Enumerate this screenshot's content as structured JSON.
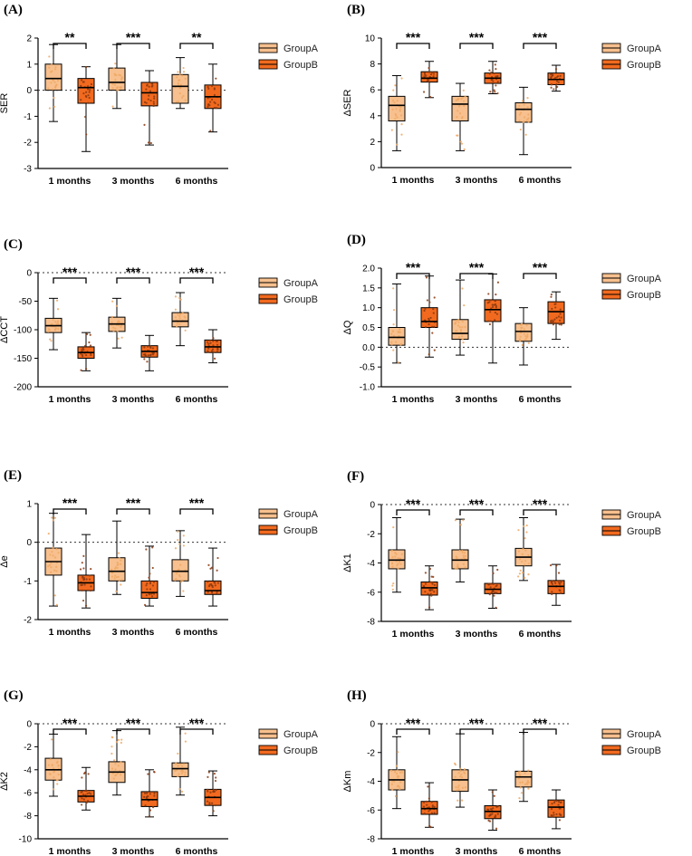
{
  "colors": {
    "groupA": "#F7C08E",
    "groupB": "#F26A1F",
    "pointA": "#F0A864",
    "pointB": "#8A3A12",
    "axis": "#000000"
  },
  "chart_data": [
    {
      "panel": "(A)",
      "type": "boxplot",
      "ylabel": "SER",
      "ylim": [
        -3,
        2
      ],
      "yticks": [
        -3,
        -2,
        -1,
        0,
        1,
        2
      ],
      "zero_line": true,
      "categories": [
        "1 months",
        "3 months",
        "6 months"
      ],
      "legend": [
        "GroupA",
        "GroupB"
      ],
      "significance": [
        "**",
        "***",
        "**"
      ],
      "series": [
        {
          "name": "GroupA",
          "boxes": [
            {
              "min": -1.2,
              "q1": 0.0,
              "median": 0.45,
              "q3": 1.0,
              "max": 1.75
            },
            {
              "min": -0.7,
              "q1": 0.0,
              "median": 0.3,
              "q3": 0.85,
              "max": 1.75
            },
            {
              "min": -0.7,
              "q1": -0.5,
              "median": 0.15,
              "q3": 0.6,
              "max": 1.25
            }
          ]
        },
        {
          "name": "GroupB",
          "boxes": [
            {
              "min": -2.35,
              "q1": -0.5,
              "median": 0.1,
              "q3": 0.45,
              "max": 0.9
            },
            {
              "min": -2.1,
              "q1": -0.6,
              "median": -0.1,
              "q3": 0.3,
              "max": 0.75
            },
            {
              "min": -1.6,
              "q1": -0.7,
              "median": -0.25,
              "q3": 0.2,
              "max": 1.0
            }
          ]
        }
      ]
    },
    {
      "panel": "(B)",
      "type": "boxplot",
      "ylabel": "ΔSER",
      "ylim": [
        0,
        10
      ],
      "yticks": [
        0,
        2,
        4,
        6,
        8,
        10
      ],
      "zero_line": false,
      "categories": [
        "1 months",
        "3 months",
        "6 months"
      ],
      "legend": [
        "GroupA",
        "GroupB"
      ],
      "significance": [
        "***",
        "***",
        "***"
      ],
      "series": [
        {
          "name": "GroupA",
          "boxes": [
            {
              "min": 1.3,
              "q1": 3.6,
              "median": 4.8,
              "q3": 5.5,
              "max": 7.1
            },
            {
              "min": 1.3,
              "q1": 3.6,
              "median": 4.9,
              "q3": 5.5,
              "max": 6.5
            },
            {
              "min": 1.0,
              "q1": 3.5,
              "median": 4.5,
              "q3": 5.0,
              "max": 6.2
            }
          ]
        },
        {
          "name": "GroupB",
          "boxes": [
            {
              "min": 5.4,
              "q1": 6.6,
              "median": 6.9,
              "q3": 7.4,
              "max": 8.2
            },
            {
              "min": 5.7,
              "q1": 6.5,
              "median": 6.9,
              "q3": 7.3,
              "max": 8.2
            },
            {
              "min": 5.9,
              "q1": 6.4,
              "median": 6.8,
              "q3": 7.3,
              "max": 7.9
            }
          ]
        }
      ]
    },
    {
      "panel": "(C)",
      "type": "boxplot",
      "ylabel": "ΔCCT",
      "ylim": [
        -200,
        0
      ],
      "yticks": [
        -200,
        -150,
        -100,
        -50,
        0
      ],
      "zero_line": true,
      "categories": [
        "1 months",
        "3 months",
        "6 months"
      ],
      "legend": [
        "GroupA",
        "GroupB"
      ],
      "significance": [
        "***",
        "***",
        "***"
      ],
      "series": [
        {
          "name": "GroupA",
          "boxes": [
            {
              "min": -135,
              "q1": -105,
              "median": -93,
              "q3": -80,
              "max": -45
            },
            {
              "min": -132,
              "q1": -103,
              "median": -90,
              "q3": -78,
              "max": -45
            },
            {
              "min": -128,
              "q1": -95,
              "median": -85,
              "q3": -70,
              "max": -35
            }
          ]
        },
        {
          "name": "GroupB",
          "boxes": [
            {
              "min": -172,
              "q1": -150,
              "median": -140,
              "q3": -130,
              "max": -105
            },
            {
              "min": -172,
              "q1": -148,
              "median": -138,
              "q3": -128,
              "max": -110
            },
            {
              "min": -158,
              "q1": -140,
              "median": -130,
              "q3": -118,
              "max": -100
            }
          ]
        }
      ]
    },
    {
      "panel": "(D)",
      "type": "boxplot",
      "ylabel": "ΔQ",
      "ylim": [
        -1.0,
        2.0
      ],
      "yticks": [
        -1.0,
        -0.5,
        0.0,
        0.5,
        1.0,
        1.5,
        2.0
      ],
      "zero_line": true,
      "categories": [
        "1 months",
        "3 months",
        "6 months"
      ],
      "legend": [
        "GroupA",
        "GroupB"
      ],
      "significance": [
        "***",
        "***",
        "***"
      ],
      "series": [
        {
          "name": "GroupA",
          "boxes": [
            {
              "min": -0.4,
              "q1": 0.05,
              "median": 0.25,
              "q3": 0.5,
              "max": 1.6
            },
            {
              "min": -0.2,
              "q1": 0.2,
              "median": 0.35,
              "q3": 0.7,
              "max": 1.7
            },
            {
              "min": -0.45,
              "q1": 0.15,
              "median": 0.4,
              "q3": 0.6,
              "max": 1.0
            }
          ]
        },
        {
          "name": "GroupB",
          "boxes": [
            {
              "min": -0.25,
              "q1": 0.5,
              "median": 0.65,
              "q3": 1.0,
              "max": 1.8
            },
            {
              "min": -0.4,
              "q1": 0.65,
              "median": 0.95,
              "q3": 1.2,
              "max": 1.85
            },
            {
              "min": 0.2,
              "q1": 0.6,
              "median": 0.9,
              "q3": 1.15,
              "max": 1.4
            }
          ]
        }
      ]
    },
    {
      "panel": "(E)",
      "type": "boxplot",
      "ylabel": "Δe",
      "ylim": [
        -2,
        1
      ],
      "yticks": [
        -2,
        -1,
        0,
        1
      ],
      "zero_line": true,
      "categories": [
        "1 months",
        "3 months",
        "6 months"
      ],
      "legend": [
        "GroupA",
        "GroupB"
      ],
      "significance": [
        "***",
        "***",
        "***"
      ],
      "series": [
        {
          "name": "GroupA",
          "boxes": [
            {
              "min": -1.65,
              "q1": -0.85,
              "median": -0.5,
              "q3": -0.15,
              "max": 0.75
            },
            {
              "min": -1.35,
              "q1": -1.0,
              "median": -0.75,
              "q3": -0.4,
              "max": 0.55
            },
            {
              "min": -1.4,
              "q1": -1.0,
              "median": -0.75,
              "q3": -0.45,
              "max": 0.3
            }
          ]
        },
        {
          "name": "GroupB",
          "boxes": [
            {
              "min": -1.7,
              "q1": -1.25,
              "median": -1.05,
              "q3": -0.85,
              "max": 0.2
            },
            {
              "min": -1.65,
              "q1": -1.45,
              "median": -1.3,
              "q3": -1.0,
              "max": -0.1
            },
            {
              "min": -1.65,
              "q1": -1.35,
              "median": -1.25,
              "q3": -1.0,
              "max": -0.15
            }
          ]
        }
      ]
    },
    {
      "panel": "(F)",
      "type": "boxplot",
      "ylabel": "ΔK1",
      "ylim": [
        -8,
        0
      ],
      "yticks": [
        -8,
        -6,
        -4,
        -2,
        0
      ],
      "zero_line": true,
      "categories": [
        "1 months",
        "3 months",
        "6 months"
      ],
      "legend": [
        "GroupA",
        "GroupB"
      ],
      "significance": [
        "***",
        "***",
        "***"
      ],
      "series": [
        {
          "name": "GroupA",
          "boxes": [
            {
              "min": -6.0,
              "q1": -4.4,
              "median": -3.8,
              "q3": -3.1,
              "max": -0.9
            },
            {
              "min": -5.3,
              "q1": -4.4,
              "median": -3.8,
              "q3": -3.1,
              "max": -1.0
            },
            {
              "min": -5.2,
              "q1": -4.2,
              "median": -3.6,
              "q3": -3.0,
              "max": -0.9
            }
          ]
        },
        {
          "name": "GroupB",
          "boxes": [
            {
              "min": -7.2,
              "q1": -6.2,
              "median": -5.7,
              "q3": -5.3,
              "max": -4.2
            },
            {
              "min": -7.1,
              "q1": -6.1,
              "median": -5.8,
              "q3": -5.4,
              "max": -4.2
            },
            {
              "min": -6.9,
              "q1": -6.1,
              "median": -5.6,
              "q3": -5.2,
              "max": -4.1
            }
          ]
        }
      ]
    },
    {
      "panel": "(G)",
      "type": "boxplot",
      "ylabel": "ΔK2",
      "ylim": [
        -10,
        0
      ],
      "yticks": [
        -10,
        -8,
        -6,
        -4,
        -2,
        0
      ],
      "zero_line": true,
      "categories": [
        "1 months",
        "3 months",
        "6 months"
      ],
      "legend": [
        "GroupA",
        "GroupB"
      ],
      "significance": [
        "***",
        "***",
        "***"
      ],
      "series": [
        {
          "name": "GroupA",
          "boxes": [
            {
              "min": -6.3,
              "q1": -4.9,
              "median": -4.0,
              "q3": -3.0,
              "max": -0.9
            },
            {
              "min": -6.2,
              "q1": -5.1,
              "median": -4.2,
              "q3": -3.3,
              "max": -0.6
            },
            {
              "min": -6.2,
              "q1": -4.6,
              "median": -3.9,
              "q3": -3.4,
              "max": -0.3
            }
          ]
        },
        {
          "name": "GroupB",
          "boxes": [
            {
              "min": -7.5,
              "q1": -6.8,
              "median": -6.3,
              "q3": -5.8,
              "max": -3.8
            },
            {
              "min": -8.1,
              "q1": -7.2,
              "median": -6.6,
              "q3": -5.9,
              "max": -4.0
            },
            {
              "min": -8.0,
              "q1": -7.1,
              "median": -6.4,
              "q3": -5.7,
              "max": -4.1
            }
          ]
        }
      ]
    },
    {
      "panel": "(H)",
      "type": "boxplot",
      "ylabel": "ΔKm",
      "ylim": [
        -8,
        0
      ],
      "yticks": [
        -8,
        -6,
        -4,
        -2,
        0
      ],
      "zero_line": true,
      "categories": [
        "1 months",
        "3 months",
        "6 months"
      ],
      "legend": [
        "GroupA",
        "GroupB"
      ],
      "significance": [
        "***",
        "***",
        "***"
      ],
      "series": [
        {
          "name": "GroupA",
          "boxes": [
            {
              "min": -5.9,
              "q1": -4.6,
              "median": -3.9,
              "q3": -3.2,
              "max": -0.9
            },
            {
              "min": -5.8,
              "q1": -4.7,
              "median": -3.9,
              "q3": -3.2,
              "max": -0.7
            },
            {
              "min": -5.4,
              "q1": -4.4,
              "median": -3.7,
              "q3": -3.3,
              "max": -0.6
            }
          ]
        },
        {
          "name": "GroupB",
          "boxes": [
            {
              "min": -7.2,
              "q1": -6.3,
              "median": -5.9,
              "q3": -5.4,
              "max": -4.1
            },
            {
              "min": -7.4,
              "q1": -6.6,
              "median": -6.1,
              "q3": -5.7,
              "max": -4.6
            },
            {
              "min": -7.3,
              "q1": -6.5,
              "median": -5.8,
              "q3": -5.3,
              "max": -4.6
            }
          ]
        }
      ]
    }
  ]
}
